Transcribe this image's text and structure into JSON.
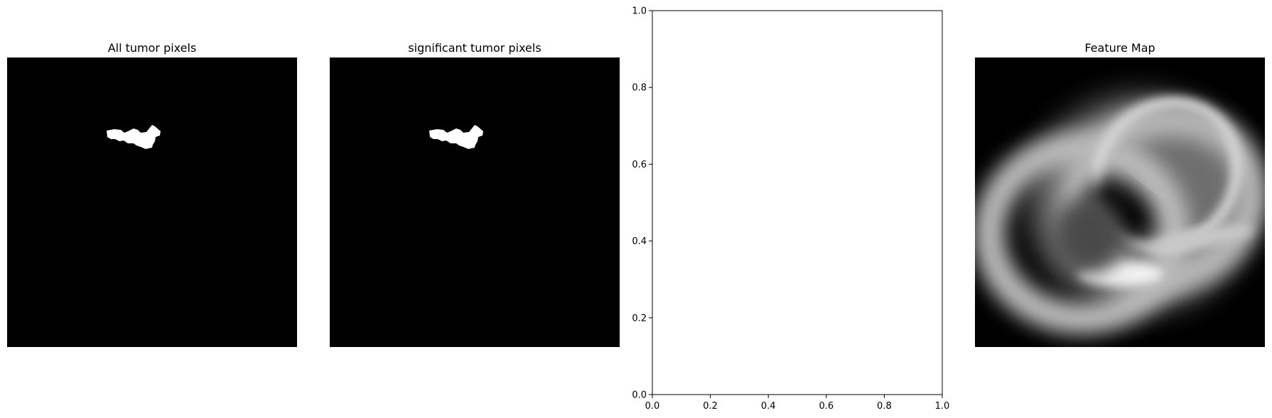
{
  "figure": {
    "panels": [
      {
        "title": "All tumor pixels",
        "kind": "image"
      },
      {
        "title": "significant tumor pixels",
        "kind": "image"
      },
      {
        "title": "",
        "kind": "empty-axes"
      },
      {
        "title": "Feature Map",
        "kind": "image"
      }
    ],
    "colors": {
      "background": "#ffffff",
      "image_background": "#000000",
      "mask": "#ffffff"
    },
    "colormap": "gray"
  },
  "chart_data": [
    {
      "type": "heatmap",
      "title": "All tumor pixels",
      "colormap": "gray",
      "content": "binary mask: small white blob on black",
      "axis": "off"
    },
    {
      "type": "heatmap",
      "title": "significant tumor pixels",
      "colormap": "gray",
      "content": "binary mask: small white blob on black",
      "axis": "off"
    },
    {
      "type": "scatter",
      "title": "",
      "xlim": [
        0.0,
        1.0
      ],
      "ylim": [
        0.0,
        1.0
      ],
      "xticks": [
        "0.0",
        "0.2",
        "0.4",
        "0.6",
        "0.8",
        "1.0"
      ],
      "yticks": [
        "0.0",
        "0.2",
        "0.4",
        "0.6",
        "0.8",
        "1.0"
      ],
      "series": [],
      "grid": false
    },
    {
      "type": "heatmap",
      "title": "Feature Map",
      "colormap": "gray",
      "content": "blurred grayscale ring-like feature map",
      "axis": "off"
    }
  ]
}
